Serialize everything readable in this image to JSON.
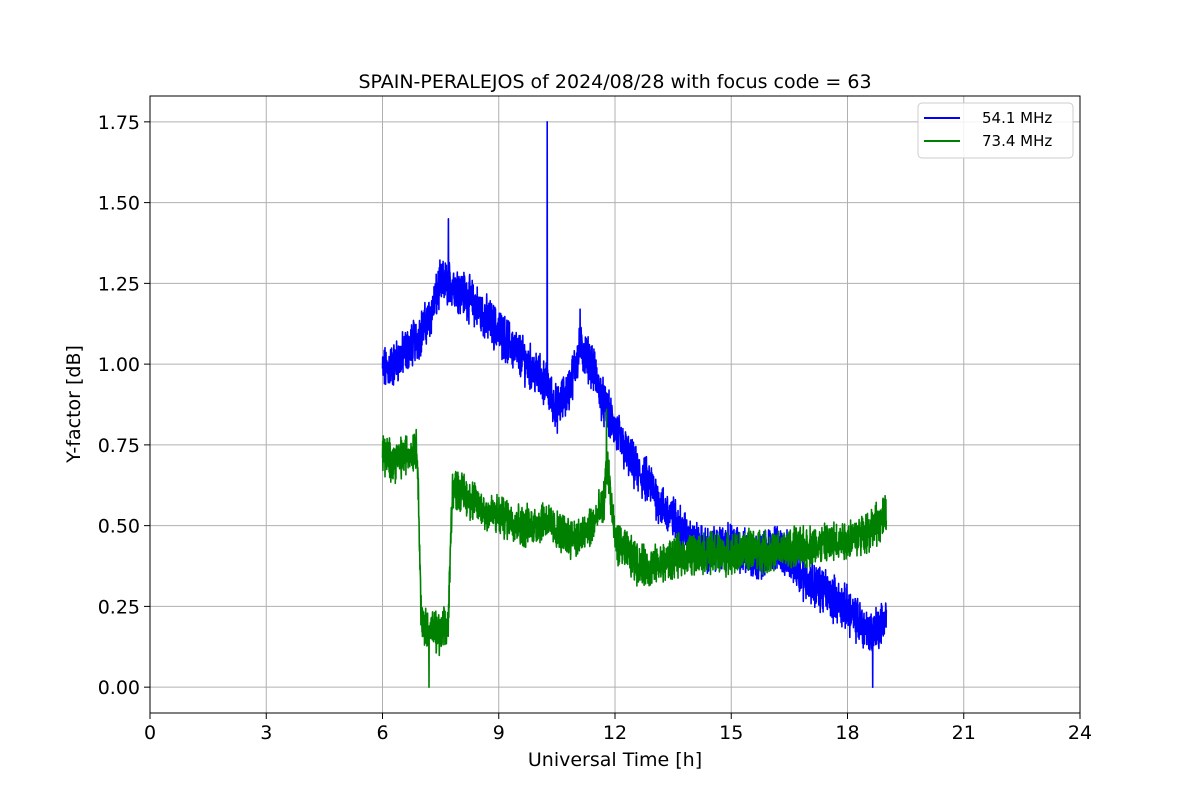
{
  "chart_data": {
    "type": "line",
    "title": "SPAIN-PERALEJOS of 2024/08/28 with focus code = 63",
    "xlabel": "Universal Time [h]",
    "ylabel": "Y-factor [dB]",
    "xlim": [
      0,
      24
    ],
    "ylim": [
      -0.08,
      1.83
    ],
    "xticks": [
      0,
      3,
      6,
      9,
      12,
      15,
      18,
      21,
      24
    ],
    "xtick_labels": [
      "0",
      "3",
      "6",
      "9",
      "12",
      "15",
      "18",
      "21",
      "24"
    ],
    "yticks": [
      0.0,
      0.25,
      0.5,
      0.75,
      1.0,
      1.25,
      1.5,
      1.75
    ],
    "ytick_labels": [
      "0.00",
      "0.25",
      "0.50",
      "0.75",
      "1.00",
      "1.25",
      "1.50",
      "1.75"
    ],
    "grid": true,
    "legend_position": "top-right",
    "series": [
      {
        "name": "54.1 MHz",
        "color": "#0000ff",
        "noise": 0.055,
        "x": [
          6.0,
          6.3,
          6.6,
          6.9,
          7.2,
          7.5,
          7.8,
          8.1,
          8.4,
          8.7,
          9.0,
          9.3,
          9.6,
          9.9,
          10.2,
          10.5,
          10.8,
          11.1,
          11.4,
          11.7,
          12.0,
          12.3,
          12.6,
          12.9,
          13.2,
          13.5,
          13.8,
          14.1,
          14.4,
          14.7,
          15.0,
          15.3,
          15.6,
          15.9,
          16.2,
          16.5,
          16.8,
          17.1,
          17.4,
          17.7,
          18.0,
          18.3,
          18.6,
          18.9,
          19.0
        ],
        "y": [
          0.98,
          1.0,
          1.04,
          1.08,
          1.14,
          1.25,
          1.25,
          1.22,
          1.18,
          1.14,
          1.1,
          1.06,
          1.02,
          0.98,
          0.94,
          0.86,
          0.92,
          1.05,
          1.0,
          0.88,
          0.8,
          0.72,
          0.66,
          0.63,
          0.56,
          0.52,
          0.48,
          0.44,
          0.42,
          0.43,
          0.44,
          0.42,
          0.4,
          0.42,
          0.44,
          0.4,
          0.35,
          0.32,
          0.3,
          0.27,
          0.24,
          0.2,
          0.17,
          0.2,
          0.22
        ]
      },
      {
        "name": "73.4 MHz",
        "color": "#008000",
        "noise": 0.05,
        "x": [
          6.0,
          6.3,
          6.6,
          6.9,
          7.0,
          7.2,
          7.5,
          7.7,
          7.8,
          8.1,
          8.4,
          8.7,
          9.0,
          9.3,
          9.6,
          9.9,
          10.2,
          10.5,
          10.8,
          11.1,
          11.4,
          11.7,
          11.8,
          12.0,
          12.3,
          12.6,
          12.9,
          13.2,
          13.5,
          13.8,
          14.1,
          14.4,
          14.7,
          15.0,
          15.3,
          15.6,
          15.9,
          16.2,
          16.5,
          16.8,
          17.1,
          17.4,
          17.7,
          18.0,
          18.3,
          18.6,
          18.9,
          19.0
        ],
        "y": [
          0.72,
          0.7,
          0.72,
          0.74,
          0.2,
          0.18,
          0.16,
          0.2,
          0.62,
          0.6,
          0.57,
          0.54,
          0.53,
          0.52,
          0.5,
          0.5,
          0.52,
          0.48,
          0.47,
          0.46,
          0.5,
          0.56,
          0.7,
          0.45,
          0.42,
          0.38,
          0.37,
          0.38,
          0.4,
          0.41,
          0.41,
          0.42,
          0.41,
          0.41,
          0.42,
          0.43,
          0.42,
          0.42,
          0.43,
          0.43,
          0.44,
          0.44,
          0.45,
          0.46,
          0.47,
          0.49,
          0.52,
          0.53
        ]
      }
    ],
    "spikes": [
      {
        "series": 0,
        "x": 10.25,
        "y": 1.75
      },
      {
        "series": 0,
        "x": 11.1,
        "y": 1.17
      },
      {
        "series": 0,
        "x": 7.7,
        "y": 1.45
      },
      {
        "series": 0,
        "x": 18.65,
        "y": 0.0
      },
      {
        "series": 1,
        "x": 11.78,
        "y": 0.86
      },
      {
        "series": 1,
        "x": 7.2,
        "y": 0.0
      }
    ]
  }
}
